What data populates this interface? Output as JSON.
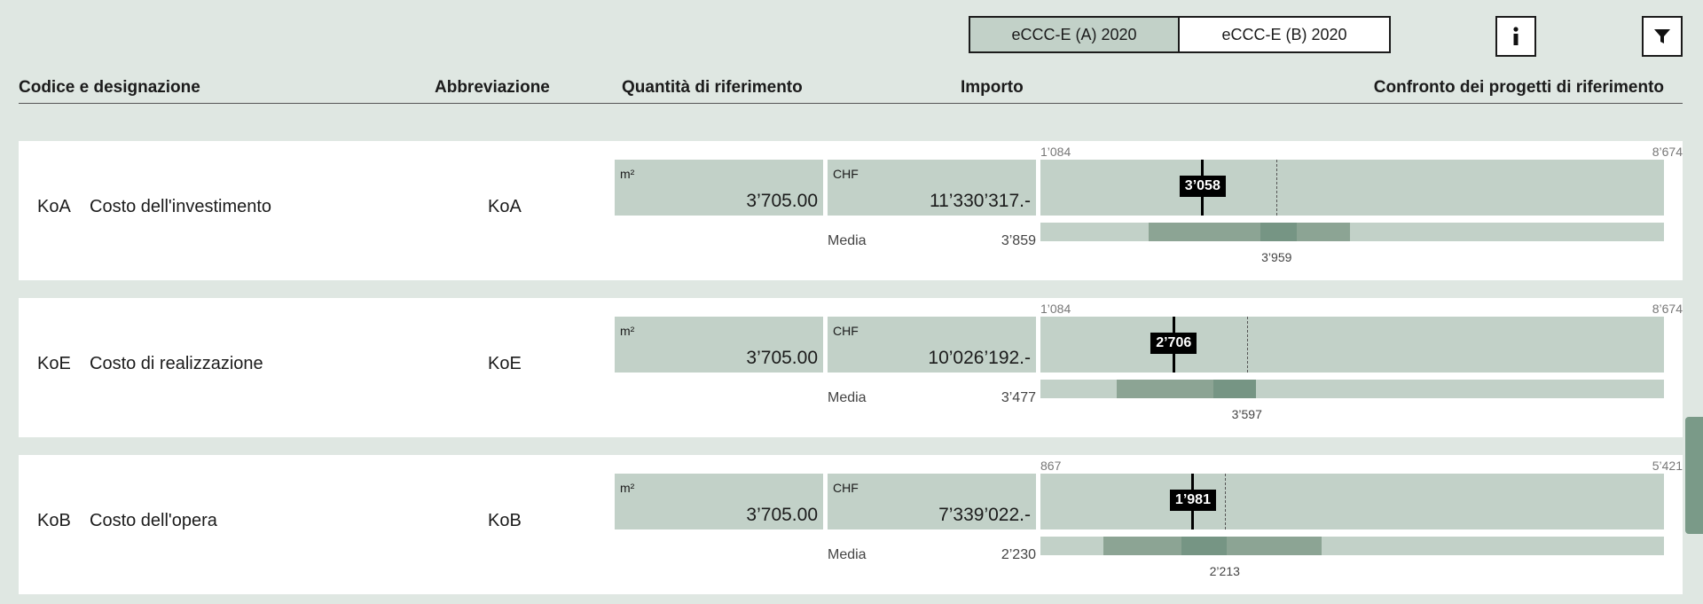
{
  "tabs": [
    {
      "label": "eCCC-E (A) 2020",
      "active": true
    },
    {
      "label": "eCCC-E (B) 2020",
      "active": false
    }
  ],
  "icons": {
    "info": "info-icon",
    "filter": "filter-icon"
  },
  "headers": {
    "code": "Codice e designazione",
    "abbr": "Abbreviazione",
    "qty": "Quantità di riferimento",
    "amount": "Importo",
    "compare": "Confronto dei progetti di riferimento"
  },
  "media_label": "Media",
  "rows": [
    {
      "code": "KoA",
      "name": "Costo dell'investimento",
      "abbr": "KoA",
      "qty_unit": "m²",
      "qty_value": "3’705.00",
      "amount_unit": "CHF",
      "amount_value": "11’330’317.-",
      "media_value": "3’859",
      "scale_min": "1’084",
      "scale_max": "8’674",
      "scale": [
        1084,
        8674
      ],
      "marker_value": 3058,
      "marker_label": "3’058",
      "avg_value": 3959,
      "avg_label": "3’959",
      "range": [
        2400,
        4850
      ],
      "core": [
        3760,
        4200
      ]
    },
    {
      "code": "KoE",
      "name": "Costo di realizzazione",
      "abbr": "KoE",
      "qty_unit": "m²",
      "qty_value": "3’705.00",
      "amount_unit": "CHF",
      "amount_value": "10’026’192.-",
      "media_value": "3’477",
      "scale_min": "1’084",
      "scale_max": "8’674",
      "scale": [
        1084,
        8674
      ],
      "marker_value": 2706,
      "marker_label": "2’706",
      "avg_value": 3597,
      "avg_label": "3’597",
      "range": [
        2010,
        3190
      ],
      "core": [
        3190,
        3710
      ]
    },
    {
      "code": "KoB",
      "name": "Costo dell'opera",
      "abbr": "KoB",
      "qty_unit": "m²",
      "qty_value": "3’705.00",
      "amount_unit": "CHF",
      "amount_value": "7’339’022.-",
      "media_value": "2’230",
      "scale_min": "867",
      "scale_max": "5’421",
      "scale": [
        867,
        5421
      ],
      "marker_value": 1981,
      "marker_label": "1’981",
      "avg_value": 2213,
      "avg_label": "2’213",
      "range": [
        1330,
        2920
      ],
      "core": [
        1900,
        2230
      ]
    }
  ]
}
